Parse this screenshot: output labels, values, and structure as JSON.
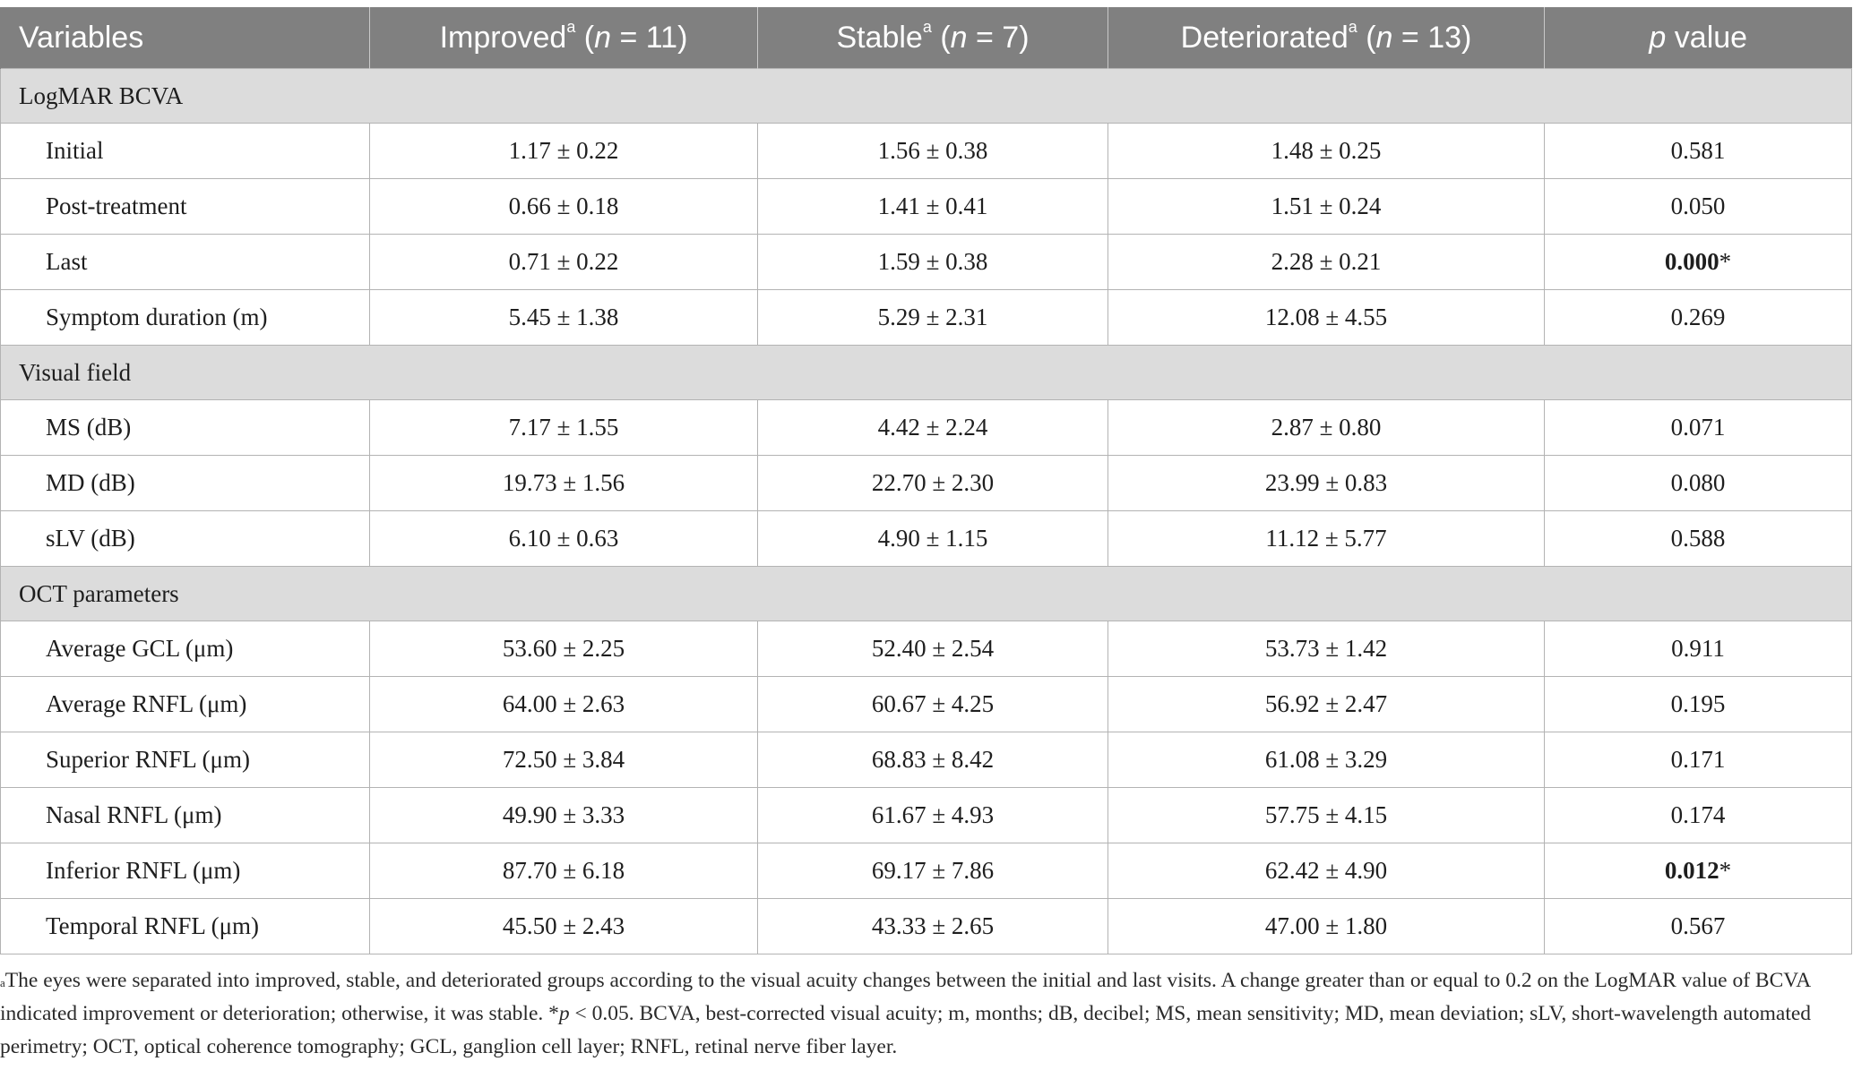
{
  "header": {
    "variables": "Variables",
    "improved": "Improved",
    "improved_n": "(n = 11)",
    "stable": "Stable",
    "stable_n": "(n = 7)",
    "deteriorated": "Deteriorated",
    "deteriorated_n": "(n = 13)",
    "p_value": "p value",
    "sup": "a"
  },
  "sections": [
    {
      "title": "LogMAR BCVA",
      "rows": [
        {
          "label": "Initial",
          "improved": "1.17 ± 0.22",
          "stable": "1.56 ± 0.38",
          "deteriorated": "1.48 ± 0.25",
          "p": "0.581",
          "p_bold": "",
          "star": ""
        },
        {
          "label": "Post-treatment",
          "improved": "0.66 ± 0.18",
          "stable": "1.41 ± 0.41",
          "deteriorated": "1.51 ± 0.24",
          "p": "0.050",
          "p_bold": "",
          "star": ""
        },
        {
          "label": "Last",
          "improved": "0.71 ± 0.22",
          "stable": "1.59 ± 0.38",
          "deteriorated": "2.28 ± 0.21",
          "p": "",
          "p_bold": "0.000",
          "star": "*"
        },
        {
          "label": "Symptom duration (m)",
          "improved": "5.45 ± 1.38",
          "stable": "5.29 ± 2.31",
          "deteriorated": "12.08 ± 4.55",
          "p": "0.269",
          "p_bold": "",
          "star": ""
        }
      ]
    },
    {
      "title": "Visual field",
      "rows": [
        {
          "label": "MS (dB)",
          "improved": "7.17 ± 1.55",
          "stable": "4.42 ± 2.24",
          "deteriorated": "2.87 ± 0.80",
          "p": "0.071",
          "p_bold": "",
          "star": ""
        },
        {
          "label": "MD (dB)",
          "improved": "19.73 ± 1.56",
          "stable": "22.70 ± 2.30",
          "deteriorated": "23.99 ± 0.83",
          "p": "0.080",
          "p_bold": "",
          "star": ""
        },
        {
          "label": "sLV (dB)",
          "improved": "6.10 ± 0.63",
          "stable": "4.90 ± 1.15",
          "deteriorated": "11.12 ± 5.77",
          "p": "0.588",
          "p_bold": "",
          "star": ""
        }
      ]
    },
    {
      "title": "OCT parameters",
      "rows": [
        {
          "label": "Average GCL (μm)",
          "improved": "53.60 ± 2.25",
          "stable": "52.40 ± 2.54",
          "deteriorated": "53.73 ± 1.42",
          "p": "0.911",
          "p_bold": "",
          "star": ""
        },
        {
          "label": "Average RNFL (μm)",
          "improved": "64.00 ± 2.63",
          "stable": "60.67 ± 4.25",
          "deteriorated": "56.92 ± 2.47",
          "p": "0.195",
          "p_bold": "",
          "star": ""
        },
        {
          "label": "Superior RNFL (μm)",
          "improved": "72.50 ± 3.84",
          "stable": "68.83 ± 8.42",
          "deteriorated": "61.08 ± 3.29",
          "p": "0.171",
          "p_bold": "",
          "star": ""
        },
        {
          "label": "Nasal RNFL (μm)",
          "improved": "49.90 ± 3.33",
          "stable": "61.67 ± 4.93",
          "deteriorated": "57.75 ± 4.15",
          "p": "0.174",
          "p_bold": "",
          "star": ""
        },
        {
          "label": "Inferior RNFL (μm)",
          "improved": "87.70 ± 6.18",
          "stable": "69.17 ± 7.86",
          "deteriorated": "62.42 ± 4.90",
          "p": "",
          "p_bold": "0.012",
          "star": "*"
        },
        {
          "label": "Temporal RNFL (μm)",
          "improved": "45.50 ± 2.43",
          "stable": "43.33 ± 2.65",
          "deteriorated": "47.00 ± 1.80",
          "p": "0.567",
          "p_bold": "",
          "star": ""
        }
      ]
    }
  ],
  "footnote": {
    "marker": "a",
    "text": "The eyes were separated into improved, stable, and deteriorated groups according to the visual acuity changes between the initial and last visits. A change greater than or equal to 0.2 on the LogMAR value of BCVA indicated improvement or deterioration; otherwise, it was stable. *p < 0.05. BCVA, best-corrected visual acuity; m, months; dB, decibel; MS, mean sensitivity; MD, mean deviation; sLV, short-wavelength automated perimetry; OCT, optical coherence tomography; GCL, ganglion cell layer; RNFL, retinal nerve fiber layer."
  }
}
